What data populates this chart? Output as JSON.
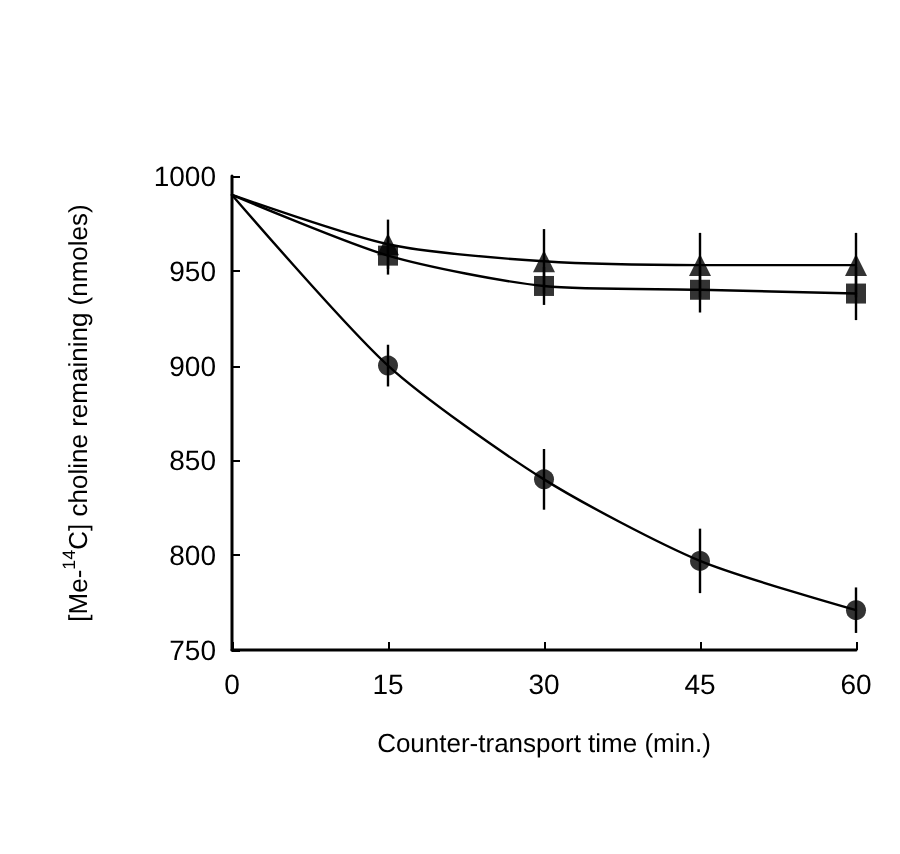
{
  "chart_data": {
    "type": "scatter",
    "xlabel": "Counter-transport time (min.)",
    "ylabel": "[Me-$^{14}$C] choline remaining (nmoles)",
    "xlim": [
      0,
      60
    ],
    "xticks": [
      0,
      15,
      30,
      45,
      60
    ],
    "ylim": [
      750,
      1000
    ],
    "yticks": [
      750,
      800,
      850,
      900,
      950,
      1000
    ],
    "grid": false,
    "series": [
      {
        "type": "line",
        "color": "#000000",
        "marker": "none",
        "x": [
          0,
          15,
          30,
          45,
          60
        ],
        "values": [
          990,
          964,
          955,
          953,
          953
        ]
      },
      {
        "type": "line",
        "color": "#000000",
        "marker": "none",
        "x": [
          0,
          15,
          30,
          45,
          60
        ],
        "values": [
          990,
          958,
          942,
          940,
          938
        ]
      },
      {
        "type": "line",
        "color": "#000000",
        "marker": "none",
        "x": [
          0,
          15,
          30,
          45,
          60
        ],
        "values": [
          990,
          900,
          840,
          797,
          771
        ]
      },
      {
        "color": "#000000",
        "marker": "triangle",
        "x": [
          15,
          30,
          45,
          60
        ],
        "values": [
          964,
          955,
          953,
          953
        ],
        "errors": [
          13,
          17,
          17,
          17
        ]
      },
      {
        "color": "#000000",
        "marker": "square",
        "x": [
          15,
          30,
          45,
          60
        ],
        "values": [
          958,
          942,
          940,
          938
        ],
        "errors": [
          10,
          10,
          12,
          14
        ]
      },
      {
        "color": "#000000",
        "marker": "circle",
        "x": [
          15,
          30,
          45,
          60
        ],
        "values": [
          900,
          840,
          797,
          771
        ],
        "errors": [
          11,
          16,
          17,
          12
        ]
      }
    ]
  }
}
